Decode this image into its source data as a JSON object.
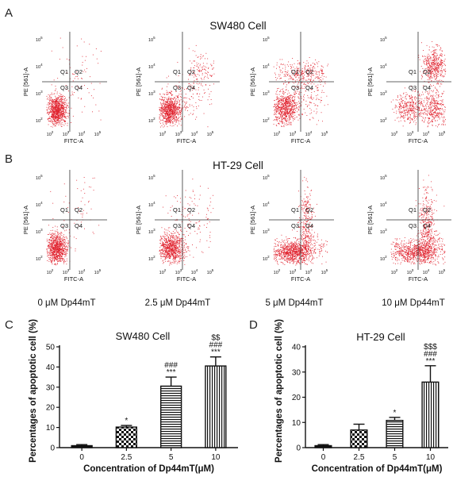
{
  "panels": {
    "a": "A",
    "b": "B",
    "c": "C",
    "d": "D"
  },
  "flow": {
    "rows": [
      {
        "title": "SW480 Cell",
        "plots": [
          {
            "q1": "Q1",
            "q2": "Q2",
            "q3": "Q3",
            "q4": "Q4"
          },
          {
            "q1": "Q1",
            "q2": "Q2",
            "q3": "Q3",
            "q4": "Q4"
          },
          {
            "q1": "Q1",
            "q2": "Q2",
            "q3": "Q3",
            "q4": "Q4"
          },
          {
            "q1": "Q1",
            "q2": "Q2",
            "q3": "Q3",
            "q4": "Q4"
          }
        ]
      },
      {
        "title": "HT-29 Cell",
        "plots": [
          {
            "q1": "Q1",
            "q2": "Q2",
            "q3": "Q3",
            "q4": "Q4"
          },
          {
            "q1": "Q1",
            "q2": "Q2",
            "q3": "Q3",
            "q4": "Q4"
          },
          {
            "q1": "Q1",
            "q2": "Q2",
            "q3": "Q3",
            "q4": "Q4"
          },
          {
            "q1": "Q1",
            "q2": "Q2",
            "q3": "Q3",
            "q4": "Q4"
          }
        ]
      }
    ],
    "x_label": "FITC-A",
    "y_label": "PE [561]-A",
    "x_ticks": [
      "10",
      "10",
      "10",
      "10"
    ],
    "y_ticks": [
      "10",
      "10",
      "10",
      "10"
    ],
    "tick_exponents": [
      "2",
      "3",
      "4",
      "5"
    ],
    "conditions": [
      "0 μM Dp44mT",
      "2.5 μM Dp44mT",
      "5 μM Dp44mT",
      "10 μM Dp44mT"
    ],
    "dot_color": "#e0202c"
  },
  "chart_data": [
    {
      "type": "bar",
      "title": "SW480 Cell",
      "categories": [
        "0",
        "2.5",
        "5",
        "10"
      ],
      "values": [
        1,
        10.2,
        30.5,
        40.5
      ],
      "errors": [
        0.5,
        0.8,
        4.5,
        4.5
      ],
      "significance": [
        "",
        "*",
        "###\n***",
        "$$\n###\n***"
      ],
      "xlabel": "Concentration of Dp44mT(μM)",
      "ylabel": "Percentages of apoptotic cell (%)",
      "ylim": [
        0,
        50
      ],
      "yticks": [
        0,
        10,
        20,
        30,
        40,
        50
      ],
      "fills": [
        "solid",
        "checker",
        "horizontal-lines",
        "vertical-lines"
      ],
      "grid": false
    },
    {
      "type": "bar",
      "title": "HT-29 Cell",
      "categories": [
        "0",
        "2.5",
        "5",
        "10"
      ],
      "values": [
        0.8,
        7,
        10.8,
        26
      ],
      "errors": [
        0.4,
        2.3,
        1.2,
        6.5
      ],
      "significance": [
        "",
        "",
        "*",
        "$$$\n###\n***"
      ],
      "xlabel": "Concentration of Dp44mT(μM)",
      "ylabel": "Percentages of apoptotic cell (%)",
      "ylim": [
        0,
        40
      ],
      "yticks": [
        0,
        10,
        20,
        30,
        40
      ],
      "fills": [
        "solid",
        "checker",
        "horizontal-lines",
        "vertical-lines"
      ],
      "grid": false
    }
  ]
}
